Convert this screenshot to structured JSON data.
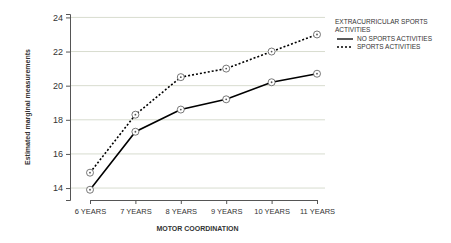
{
  "chart_data": {
    "type": "line",
    "x_label": "MOTOR COORDINATION",
    "y_label": "Estimated marginal measurements",
    "legend_title": "EXTRACURRICULAR SPORTS ACTIVITIES",
    "categories": [
      "6 YEARS",
      "7 YEARS",
      "8 YEARS",
      "9 YEARS",
      "10 YEARS",
      "11 YEARS"
    ],
    "series": [
      {
        "name": "NO SPORTS ACTIVITIES",
        "color": "#000000",
        "line_style": "solid",
        "marker": "circle",
        "values": [
          13.9,
          17.3,
          18.6,
          19.2,
          20.2,
          20.7
        ]
      },
      {
        "name": "SPORTS ACTIVITIES",
        "color": "#000000",
        "line_style": "dotted",
        "marker": "circle",
        "values": [
          14.9,
          18.3,
          20.5,
          21.0,
          22.0,
          23.0
        ]
      }
    ],
    "ylim": [
      13.3,
      24.2
    ],
    "yticks": [
      14,
      16,
      18,
      20,
      22,
      24
    ],
    "grid": true,
    "legend": "upper-right"
  }
}
